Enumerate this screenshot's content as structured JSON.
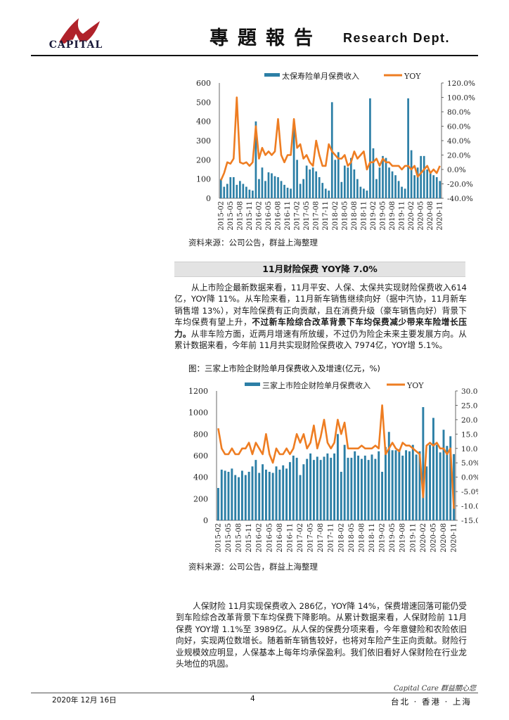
{
  "header": {
    "logo_text": "CAPITAL",
    "title": "專題報告",
    "dept": "Research Dept."
  },
  "chart_1": {
    "source": "资料来源：公司公告，群益上海整理"
  },
  "section": {
    "heading": "11月财险保费 YOY降 7.0%"
  },
  "paragraph_1": {
    "part_a": "从上市险企最新数据来看，11月平安、人保、太保共实现财险保费收入614亿，YOY降 11%。从车险来看，11月新车销售继续向好（据中汽协，11月新车销售增 13%），对车险保费有正向贡献，且在消费升级（豪车销售向好）背景下车均保费有望上升，",
    "bold": "不过新车险综合改革背景下车均保费减少带来车险增长压力。",
    "part_b": "从非车险方面，近两月增速有所放缓，不过仍为险企未来主要发展方向。从累计数据来看，今年前 11月共实现财险保费收入 7974亿，YOY增 5.1%。"
  },
  "chart_2": {
    "caption": "图：三家上市险企财险单月保费收入及增速(亿元，%)",
    "source": "资料来源：公司公告，群益上海整理"
  },
  "paragraph_2": {
    "text": "人保财险 11月实现保费收入 286亿，YOY降 14%，保费增速回落可能仍受到车险综合改革背景下车均保费下降影响。从累计数据来看，人保财险前 11月保费 YOY增 1.1%至 3989亿。从人保的保费分项来看，今年意健险和农险依旧向好，实现两位数增长。随着新车销售较好，也将对车险产生正向贡献。财险行业规模效应明显，人保基本上每年均承保盈利。我们依旧看好人保财险在行业龙头地位的巩固。"
  },
  "footer": {
    "date": "2020年 12月 16日",
    "page": "4",
    "brand": "Capital Care 群益關心您",
    "cities": "台北 · 香港 · 上海"
  },
  "chart_data": [
    {
      "type": "bar",
      "title": "",
      "categories": [
        "2015-02",
        "2015-03",
        "2015-04",
        "2015-05",
        "2015-06",
        "2015-07",
        "2015-08",
        "2015-09",
        "2015-10",
        "2015-11",
        "2015-12",
        "2016-01",
        "2016-02",
        "2016-03",
        "2016-04",
        "2016-05",
        "2016-06",
        "2016-07",
        "2016-08",
        "2016-09",
        "2016-10",
        "2016-11",
        "2016-12",
        "2017-01",
        "2017-02",
        "2017-03",
        "2017-04",
        "2017-05",
        "2017-06",
        "2017-07",
        "2017-08",
        "2017-09",
        "2017-10",
        "2017-11",
        "2017-12",
        "2018-01",
        "2018-02",
        "2018-03",
        "2018-04",
        "2018-05",
        "2018-06",
        "2018-07",
        "2018-08",
        "2018-09",
        "2018-10",
        "2018-11",
        "2018-12",
        "2019-01",
        "2019-02",
        "2019-03",
        "2019-04",
        "2019-05",
        "2019-06",
        "2019-07",
        "2019-08",
        "2019-09",
        "2019-10",
        "2019-11",
        "2019-12",
        "2020-01",
        "2020-02",
        "2020-03",
        "2020-04",
        "2020-05",
        "2020-06",
        "2020-07",
        "2020-08",
        "2020-09",
        "2020-10",
        "2020-11"
      ],
      "tick_labels": [
        "2015-02",
        "2015-05",
        "2015-08",
        "2015-11",
        "2016-02",
        "2016-05",
        "2016-08",
        "2016-11",
        "2017-02",
        "2017-05",
        "2017-08",
        "2017-11",
        "2018-02",
        "2018-05",
        "2018-08",
        "2018-11",
        "2019-02",
        "2019-05",
        "2019-08",
        "2019-11",
        "2020-02",
        "2020-05",
        "2020-08",
        "2020-11"
      ],
      "series": [
        {
          "name": "太保寿险单月保费收入",
          "axis": "left",
          "color": "#2c7fa6",
          "values": [
            100,
            60,
            75,
            110,
            110,
            70,
            90,
            75,
            60,
            45,
            40,
            400,
            100,
            160,
            90,
            135,
            130,
            115,
            110,
            90,
            70,
            55,
            50,
            400,
            200,
            75,
            100,
            170,
            150,
            160,
            140,
            110,
            80,
            50,
            40,
            500,
            200,
            240,
            85,
            170,
            160,
            210,
            150,
            100,
            60,
            50,
            40,
            520,
            260,
            100,
            160,
            220,
            210,
            160,
            140,
            120,
            90,
            60,
            50,
            520,
            250,
            120,
            160,
            220,
            220,
            150,
            140,
            120,
            110,
            90
          ]
        },
        {
          "name": "YOY",
          "axis": "right",
          "color": "#ee7d22",
          "type": "line",
          "values": [
            -15,
            -5,
            10,
            8,
            15,
            100,
            10,
            8,
            10,
            5,
            10,
            60,
            15,
            30,
            20,
            25,
            20,
            25,
            70,
            20,
            10,
            20,
            20,
            70,
            30,
            35,
            15,
            20,
            10,
            5,
            40,
            20,
            5,
            5,
            35,
            25,
            20,
            15,
            15,
            20,
            5,
            10,
            25,
            15,
            20,
            25,
            0,
            10,
            10,
            15,
            5,
            15,
            10,
            10,
            5,
            5,
            5,
            0,
            5,
            5,
            0,
            5,
            -10,
            -5,
            0,
            5,
            -5,
            0,
            -5,
            5
          ]
        }
      ],
      "ylim_left": [
        0,
        600
      ],
      "yticks_left": [
        "0",
        "100",
        "200",
        "300",
        "400",
        "500",
        "600"
      ],
      "ylim_right": [
        -40,
        120
      ],
      "yticks_right": [
        "-40.0%",
        "-20.0%",
        "0.0%",
        "20.0%",
        "40.0%",
        "60.0%",
        "80.0%",
        "100.0%",
        "120.0%"
      ]
    },
    {
      "type": "bar",
      "title": "",
      "categories": [
        "2015-02",
        "2015-03",
        "2015-04",
        "2015-05",
        "2015-06",
        "2015-07",
        "2015-08",
        "2015-09",
        "2015-10",
        "2015-11",
        "2015-12",
        "2016-01",
        "2016-02",
        "2016-03",
        "2016-04",
        "2016-05",
        "2016-06",
        "2016-07",
        "2016-08",
        "2016-09",
        "2016-10",
        "2016-11",
        "2016-12",
        "2017-01",
        "2017-02",
        "2017-03",
        "2017-04",
        "2017-05",
        "2017-06",
        "2017-07",
        "2017-08",
        "2017-09",
        "2017-10",
        "2017-11",
        "2017-12",
        "2018-01",
        "2018-02",
        "2018-03",
        "2018-04",
        "2018-05",
        "2018-06",
        "2018-07",
        "2018-08",
        "2018-09",
        "2018-10",
        "2018-11",
        "2018-12",
        "2019-01",
        "2019-02",
        "2019-03",
        "2019-04",
        "2019-05",
        "2019-06",
        "2019-07",
        "2019-08",
        "2019-09",
        "2019-10",
        "2019-11",
        "2019-12",
        "2020-01",
        "2020-02",
        "2020-03",
        "2020-04",
        "2020-05",
        "2020-06",
        "2020-07",
        "2020-08",
        "2020-09",
        "2020-10",
        "2020-11"
      ],
      "tick_labels": [
        "2015-02",
        "2015-05",
        "2015-08",
        "2015-11",
        "2016-02",
        "2016-05",
        "2016-08",
        "2016-11",
        "2017-02",
        "2017-05",
        "2017-08",
        "2017-11",
        "2018-02",
        "2018-05",
        "2018-08",
        "2018-11",
        "2019-02",
        "2019-05",
        "2019-08",
        "2019-11",
        "2020-02",
        "2020-05",
        "2020-08",
        "2020-11"
      ],
      "series": [
        {
          "name": "三家上市险企财险单月保费收入",
          "axis": "left",
          "color": "#2c7fa6",
          "values": [
            300,
            470,
            460,
            450,
            480,
            420,
            400,
            460,
            420,
            450,
            500,
            560,
            440,
            520,
            470,
            450,
            440,
            500,
            470,
            510,
            480,
            540,
            600,
            580,
            420,
            520,
            570,
            620,
            560,
            590,
            560,
            590,
            620,
            580,
            620,
            800,
            450,
            700,
            580,
            580,
            640,
            600,
            570,
            600,
            560,
            610,
            570,
            640,
            450,
            680,
            820,
            650,
            650,
            660,
            600,
            650,
            640,
            700,
            610,
            640,
            1050,
            500,
            700,
            950,
            700,
            630,
            840,
            690,
            780,
            614
          ]
        },
        {
          "name": "YOY",
          "axis": "right",
          "color": "#ee7d22",
          "type": "line",
          "values": [
            17,
            10,
            8,
            8,
            10,
            8,
            8,
            10,
            10,
            12,
            8,
            12,
            10,
            8,
            15,
            8,
            5,
            10,
            8,
            8,
            10,
            8,
            10,
            15,
            12,
            15,
            10,
            12,
            18,
            10,
            14,
            20,
            12,
            10,
            12,
            20,
            15,
            19,
            10,
            10,
            10,
            10,
            11,
            10,
            10,
            10,
            11,
            10,
            25,
            8,
            10,
            12,
            10,
            9,
            12,
            11,
            11,
            10,
            9,
            8,
            -7,
            11,
            12,
            11,
            12,
            10,
            10,
            8,
            10,
            -11
          ]
        }
      ],
      "ylim_left": [
        0,
        1200
      ],
      "yticks_left": [
        "0",
        "200",
        "400",
        "600",
        "800",
        "1000",
        "1200"
      ],
      "ylim_right": [
        -15,
        30
      ],
      "yticks_right": [
        "-15.0%",
        "-10.0%",
        "-5.0%",
        "0.0%",
        "5.0%",
        "10.0%",
        "15.0%",
        "20.0%",
        "25.0%",
        "30.0%"
      ]
    }
  ]
}
